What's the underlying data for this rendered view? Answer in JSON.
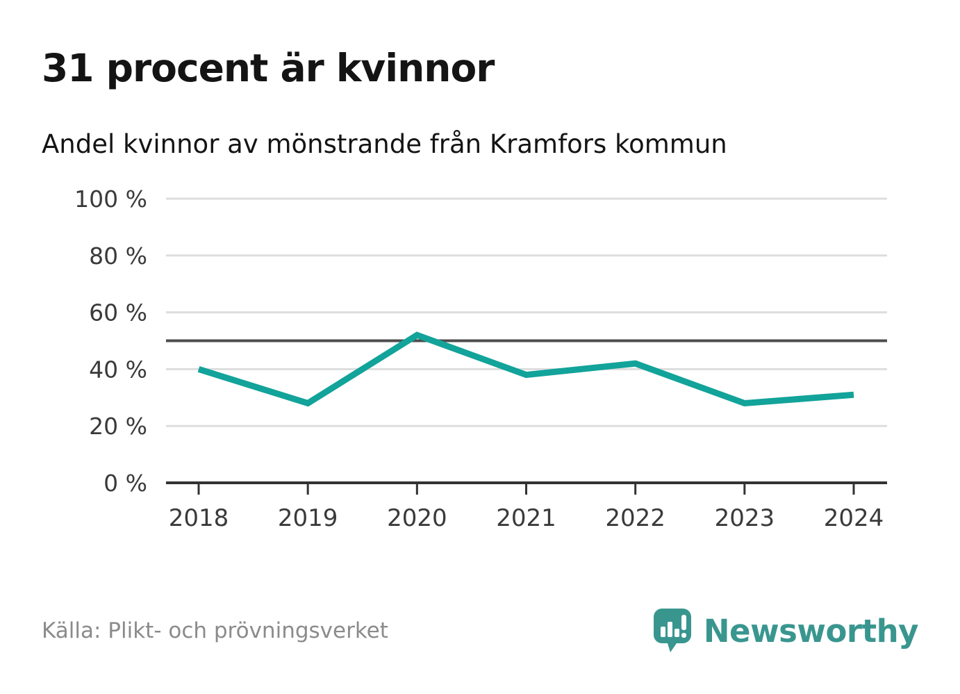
{
  "title": "31 procent är kvinnor",
  "subtitle": "Andel kvinnor av mönstrande från Kramfors kommun",
  "source": "Källa: Plikt- och prövningsverket",
  "brand": {
    "name": "Newsworthy"
  },
  "colors": {
    "line": "#12a39a",
    "grid": "#dddddd",
    "axis": "#333333",
    "reference_line": "#4d4d4d",
    "tick_label": "#3a3a3a",
    "title_text": "#141414",
    "source_text": "#8b8b8b",
    "brand_teal": "#39968f"
  },
  "chart_data": {
    "type": "line",
    "title": "31 procent är kvinnor",
    "subtitle": "Andel kvinnor av mönstrande från Kramfors kommun",
    "x": [
      "2018",
      "2019",
      "2020",
      "2021",
      "2022",
      "2023",
      "2024"
    ],
    "series": [
      {
        "name": "Andel kvinnor av mönstrande",
        "values": [
          40,
          28,
          52,
          38,
          42,
          28,
          31
        ]
      }
    ],
    "unit": "%",
    "ylim": [
      0,
      100
    ],
    "yticks": [
      0,
      20,
      40,
      60,
      80,
      100
    ],
    "ytick_labels": [
      "0 %",
      "20 %",
      "40 %",
      "60 %",
      "80 %",
      "100 %"
    ],
    "reference_line": 50,
    "grid": "horizontal",
    "legend": "none"
  }
}
